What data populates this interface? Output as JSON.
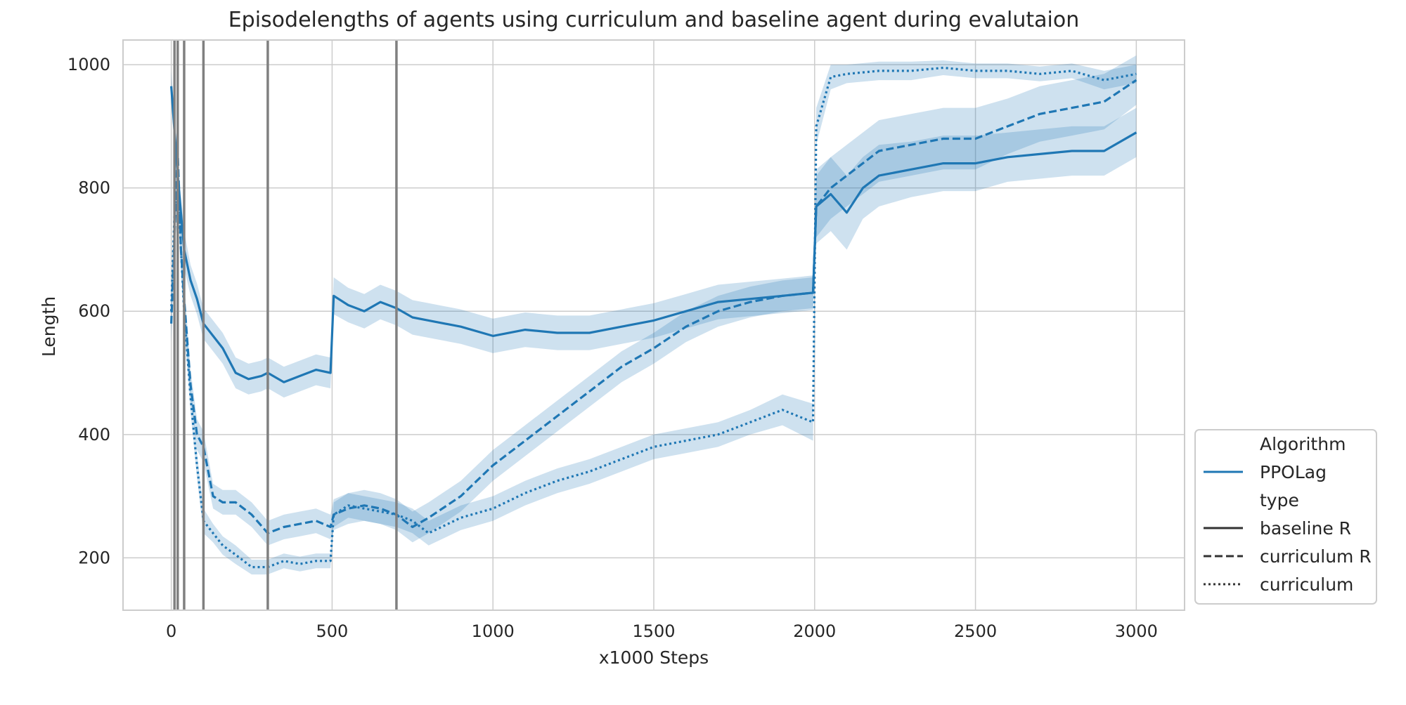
{
  "chart_data": {
    "type": "line",
    "title": "Episodelengths of agents using curriculum and baseline agent during evalutaion",
    "xlabel": "x1000 Steps",
    "ylabel": "Length",
    "xlim": [
      -150,
      3150
    ],
    "ylim": [
      115,
      1040
    ],
    "xticks": [
      0,
      500,
      1000,
      1500,
      2000,
      2500,
      3000
    ],
    "yticks": [
      200,
      400,
      600,
      800,
      1000
    ],
    "grid": true,
    "vlines": {
      "x": [
        10,
        20,
        40,
        100,
        300,
        700
      ],
      "color": "#808080"
    },
    "line_color": "#1f77b4",
    "band_color": "#1f77b4",
    "legend": {
      "placement": "lower-right, outside plot",
      "algorithm_title": "Algorithm",
      "algorithm_entry": "PPOLag",
      "type_title": "type",
      "type_entries": [
        "baseline R",
        "curriculum R",
        "curriculum"
      ]
    },
    "series": [
      {
        "name": "baseline R",
        "style": "solid",
        "x": [
          0,
          20,
          40,
          60,
          80,
          100,
          130,
          160,
          200,
          240,
          280,
          300,
          350,
          400,
          450,
          495,
          505,
          550,
          600,
          650,
          700,
          750,
          800,
          900,
          1000,
          1100,
          1200,
          1300,
          1400,
          1500,
          1600,
          1700,
          1800,
          1900,
          1995,
          2005,
          2050,
          2100,
          2150,
          2200,
          2300,
          2400,
          2500,
          2600,
          2700,
          2800,
          2900,
          3000
        ],
        "y": [
          965,
          820,
          700,
          650,
          620,
          580,
          560,
          540,
          500,
          490,
          495,
          500,
          485,
          495,
          505,
          500,
          625,
          610,
          600,
          615,
          605,
          590,
          585,
          575,
          560,
          570,
          565,
          565,
          575,
          585,
          600,
          615,
          620,
          625,
          630,
          770,
          790,
          760,
          800,
          820,
          830,
          840,
          840,
          850,
          855,
          860,
          860,
          890
        ],
        "band": [
          25,
          30,
          30,
          25,
          25,
          25,
          25,
          25,
          25,
          25,
          25,
          25,
          25,
          25,
          25,
          25,
          30,
          28,
          28,
          28,
          28,
          28,
          28,
          28,
          28,
          28,
          28,
          28,
          28,
          28,
          28,
          28,
          28,
          28,
          28,
          60,
          60,
          60,
          50,
          50,
          45,
          45,
          45,
          40,
          40,
          40,
          40,
          40
        ]
      },
      {
        "name": "curriculum R",
        "style": "dashed",
        "x": [
          0,
          10,
          20,
          30,
          40,
          60,
          80,
          100,
          130,
          160,
          200,
          250,
          300,
          350,
          400,
          450,
          495,
          505,
          550,
          600,
          650,
          700,
          750,
          800,
          900,
          1000,
          1100,
          1200,
          1300,
          1400,
          1500,
          1600,
          1700,
          1800,
          1900,
          1995,
          2005,
          2050,
          2100,
          2200,
          2300,
          2400,
          2500,
          2600,
          2700,
          2800,
          2900,
          3000
        ],
        "y": [
          580,
          720,
          860,
          700,
          620,
          480,
          400,
          380,
          300,
          290,
          290,
          270,
          240,
          250,
          255,
          260,
          250,
          270,
          280,
          285,
          280,
          270,
          250,
          265,
          300,
          350,
          390,
          430,
          470,
          510,
          540,
          575,
          600,
          615,
          625,
          630,
          770,
          800,
          820,
          860,
          870,
          880,
          880,
          900,
          920,
          930,
          940,
          975
        ],
        "band": [
          30,
          40,
          40,
          35,
          30,
          25,
          25,
          25,
          20,
          20,
          20,
          20,
          20,
          20,
          20,
          20,
          20,
          25,
          25,
          25,
          25,
          25,
          25,
          25,
          25,
          25,
          25,
          25,
          25,
          25,
          25,
          25,
          25,
          25,
          25,
          25,
          50,
          50,
          50,
          50,
          50,
          50,
          50,
          45,
          45,
          45,
          45,
          40
        ]
      },
      {
        "name": "curriculum",
        "style": "dotted",
        "x": [
          0,
          10,
          20,
          30,
          40,
          60,
          80,
          100,
          130,
          160,
          200,
          250,
          300,
          350,
          400,
          450,
          495,
          505,
          550,
          600,
          650,
          700,
          750,
          800,
          900,
          1000,
          1100,
          1200,
          1300,
          1400,
          1500,
          1600,
          1700,
          1800,
          1900,
          1995,
          2005,
          2050,
          2100,
          2200,
          2300,
          2400,
          2500,
          2600,
          2700,
          2800,
          2900,
          3000
        ],
        "y": [
          600,
          760,
          820,
          700,
          600,
          460,
          350,
          260,
          240,
          220,
          205,
          185,
          185,
          195,
          190,
          195,
          195,
          270,
          285,
          280,
          275,
          270,
          260,
          240,
          265,
          280,
          305,
          325,
          340,
          360,
          380,
          390,
          400,
          420,
          440,
          420,
          900,
          980,
          985,
          990,
          990,
          995,
          990,
          990,
          985,
          990,
          975,
          985
        ],
        "band": [
          30,
          40,
          40,
          35,
          30,
          25,
          20,
          20,
          15,
          15,
          15,
          12,
          12,
          12,
          12,
          12,
          12,
          20,
          20,
          20,
          20,
          20,
          20,
          20,
          20,
          20,
          20,
          20,
          20,
          20,
          20,
          20,
          20,
          20,
          25,
          30,
          30,
          20,
          15,
          15,
          15,
          12,
          12,
          12,
          12,
          12,
          15,
          15
        ]
      }
    ]
  }
}
